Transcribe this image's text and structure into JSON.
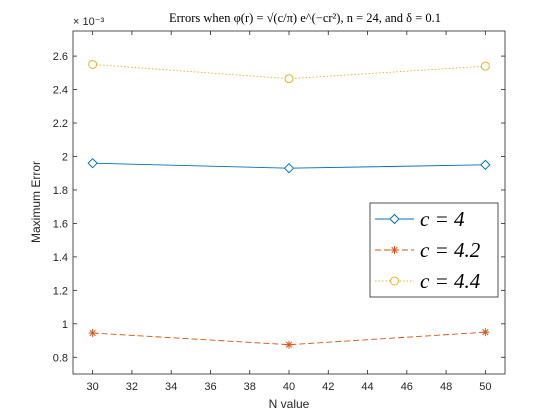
{
  "chart_data": {
    "type": "line",
    "title": "Errors when φ(r) = √(c/π) e^(−cr²), n = 24, and δ = 0.1",
    "xlabel": "N value",
    "ylabel": "Maximum Error",
    "y_exponent_label": "× 10⁻³",
    "x": [
      30,
      40,
      50
    ],
    "xlim": [
      29,
      51
    ],
    "ylim": [
      0.7,
      2.75
    ],
    "xticks": [
      "30",
      "32",
      "34",
      "36",
      "38",
      "40",
      "42",
      "44",
      "46",
      "48",
      "50"
    ],
    "yticks": [
      "0.8",
      "1",
      "1.2",
      "1.4",
      "1.6",
      "1.8",
      "2",
      "2.2",
      "2.4",
      "2.6"
    ],
    "grid": false,
    "legend_position": "right",
    "series": [
      {
        "name": "c = 4",
        "values": [
          1.96,
          1.93,
          1.95
        ],
        "color": "#0072BD",
        "marker": "diamond",
        "line": "solid"
      },
      {
        "name": "c = 4.2",
        "values": [
          0.945,
          0.875,
          0.95
        ],
        "color": "#D95319",
        "marker": "asterisk",
        "line": "dashed"
      },
      {
        "name": "c = 4.4",
        "values": [
          2.55,
          2.465,
          2.54
        ],
        "color": "#EDB120",
        "marker": "circle",
        "line": "dotted"
      }
    ]
  }
}
